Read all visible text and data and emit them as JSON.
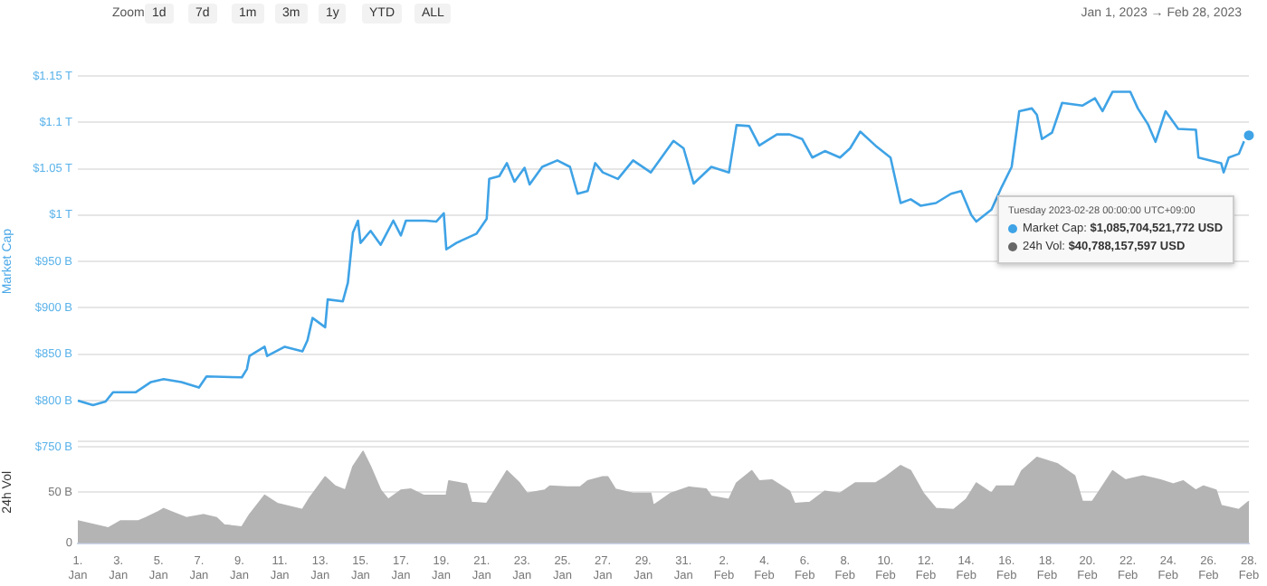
{
  "chart_data": [
    {
      "type": "other",
      "annotations": [
        "Zoom",
        "1d",
        "7d",
        "1m",
        "3m",
        "1y",
        "YTD",
        "ALL",
        "Jan 1, 2023 → Feb 28, 2023"
      ]
    },
    {
      "type": "line",
      "ylabel": "Market Cap",
      "marker": "none",
      "grid": "y",
      "tick_labels": "y",
      "xlim": [
        "2023-01-01",
        "2023-02-28"
      ],
      "ylim": [
        750000000000.0,
        1150000000000.0
      ],
      "yticks": [
        {
          "value": 750000000000.0,
          "label": "$750 B"
        },
        {
          "value": 800000000000.0,
          "label": "$800 B"
        },
        {
          "value": 850000000000.0,
          "label": "$850 B"
        },
        {
          "value": 900000000000.0,
          "label": "$900 B"
        },
        {
          "value": 950000000000.0,
          "label": "$950 B"
        },
        {
          "value": 1000000000000.0,
          "label": "$1 T"
        },
        {
          "value": 1050000000000.0,
          "label": "$1.05 T"
        },
        {
          "value": 1100000000000.0,
          "label": "$1.1 T"
        },
        {
          "value": 1150000000000.0,
          "label": "$1.15 T"
        }
      ],
      "x": [
        "2023-01-01T00:00",
        "2023-01-01T18:00",
        "2023-01-02T09:00",
        "2023-01-02T18:00",
        "2023-01-03T21:00",
        "2023-01-04T15:00",
        "2023-01-05T06:00",
        "2023-01-06T03:00",
        "2023-01-07T00:00",
        "2023-01-07T09:00",
        "2023-01-09T03:00",
        "2023-01-09T09:00",
        "2023-01-09T12:00",
        "2023-01-10T06:00",
        "2023-01-10T09:00",
        "2023-01-11T06:00",
        "2023-01-12T03:00",
        "2023-01-12T09:00",
        "2023-01-12T15:00",
        "2023-01-13T06:00",
        "2023-01-13T09:00",
        "2023-01-14T03:00",
        "2023-01-14T09:00",
        "2023-01-14T15:00",
        "2023-01-14T21:00",
        "2023-01-15T00:00",
        "2023-01-15T12:00",
        "2023-01-16T00:00",
        "2023-01-16T15:00",
        "2023-01-17T00:00",
        "2023-01-17T06:00",
        "2023-01-18T06:00",
        "2023-01-18T18:00",
        "2023-01-19T03:00",
        "2023-01-19T06:00",
        "2023-01-19T18:00",
        "2023-01-20T18:00",
        "2023-01-21T06:00",
        "2023-01-21T09:00",
        "2023-01-21T21:00",
        "2023-01-22T06:00",
        "2023-01-22T15:00",
        "2023-01-23T03:00",
        "2023-01-23T09:00",
        "2023-01-24T00:00",
        "2023-01-24T18:00",
        "2023-01-25T09:00",
        "2023-01-25T18:00",
        "2023-01-26T06:00",
        "2023-01-26T15:00",
        "2023-01-27T00:00",
        "2023-01-27T18:00",
        "2023-01-28T12:00",
        "2023-01-29T09:00",
        "2023-01-30T12:00",
        "2023-01-31T00:00",
        "2023-01-31T12:00",
        "2023-02-01T09:00",
        "2023-02-02T06:00",
        "2023-02-02T15:00",
        "2023-02-03T06:00",
        "2023-02-03T18:00",
        "2023-02-04T15:00",
        "2023-02-05T06:00",
        "2023-02-05T21:00",
        "2023-02-06T09:00",
        "2023-02-07T00:00",
        "2023-02-07T18:00",
        "2023-02-08T06:00",
        "2023-02-08T18:00",
        "2023-02-09T12:00",
        "2023-02-10T06:00",
        "2023-02-10T18:00",
        "2023-02-11T06:00",
        "2023-02-11T18:00",
        "2023-02-12T12:00",
        "2023-02-13T06:00",
        "2023-02-13T18:00",
        "2023-02-14T06:00",
        "2023-02-14T12:00",
        "2023-02-15T06:00",
        "2023-02-15T18:00",
        "2023-02-16T06:00",
        "2023-02-16T15:00",
        "2023-02-17T06:00",
        "2023-02-17T12:00",
        "2023-02-17T18:00",
        "2023-02-18T06:00",
        "2023-02-18T18:00",
        "2023-02-19T18:00",
        "2023-02-20T09:00",
        "2023-02-20T18:00",
        "2023-02-21T06:00",
        "2023-02-22T03:00",
        "2023-02-22T12:00",
        "2023-02-23T00:00",
        "2023-02-23T09:00",
        "2023-02-23T21:00",
        "2023-02-24T12:00",
        "2023-02-25T09:00",
        "2023-02-25T12:00",
        "2023-02-26T15:00",
        "2023-02-26T18:00",
        "2023-02-27T00:00",
        "2023-02-27T12:00",
        "2023-02-27T18:00",
        "2023-02-28T00:00"
      ],
      "series": [
        {
          "color": "#3fa3e6",
          "values": [
            800000000000.0,
            795000000000.0,
            799000000000.0,
            809000000000.0,
            809000000000.0,
            820000000000.0,
            823000000000.0,
            820000000000.0,
            814000000000.0,
            826000000000.0,
            825000000000.0,
            834000000000.0,
            848000000000.0,
            858000000000.0,
            848000000000.0,
            858000000000.0,
            853000000000.0,
            865000000000.0,
            889000000000.0,
            879000000000.0,
            909000000000.0,
            907000000000.0,
            927000000000.0,
            981000000000.0,
            994000000000.0,
            970000000000.0,
            983000000000.0,
            968000000000.0,
            994000000000.0,
            978000000000.0,
            994000000000.0,
            994000000000.0,
            993000000000.0,
            1002000000000.0,
            963000000000.0,
            970000000000.0,
            980000000000.0,
            996000000000.0,
            1039000000000.0,
            1042000000000.0,
            1056000000000.0,
            1036000000000.0,
            1051000000000.0,
            1033000000000.0,
            1052000000000.0,
            1059000000000.0,
            1052000000000.0,
            1023000000000.0,
            1026000000000.0,
            1056000000000.0,
            1046000000000.0,
            1039000000000.0,
            1059000000000.0,
            1046000000000.0,
            1080000000000.0,
            1072000000000.0,
            1034000000000.0,
            1052000000000.0,
            1046000000000.0,
            1097000000000.0,
            1096000000000.0,
            1075000000000.0,
            1087000000000.0,
            1087000000000.0,
            1082000000000.0,
            1062000000000.0,
            1069000000000.0,
            1062000000000.0,
            1072000000000.0,
            1090000000000.0,
            1075000000000.0,
            1062000000000.0,
            1013000000000.0,
            1017000000000.0,
            1010000000000.0,
            1013000000000.0,
            1023000000000.0,
            1026000000000.0,
            1000000000000.0,
            993000000000.0,
            1006000000000.0,
            1030000000000.0,
            1052000000000.0,
            1112000000000.0,
            1115000000000.0,
            1108000000000.0,
            1082000000000.0,
            1089000000000.0,
            1121000000000.0,
            1118000000000.0,
            1126000000000.0,
            1112000000000.0,
            1133000000000.0,
            1133000000000.0,
            1115000000000.0,
            1098000000000.0,
            1079000000000.0,
            1112000000000.0,
            1093000000000.0,
            1092000000000.0,
            1062000000000.0,
            1056000000000.0,
            1046000000000.0,
            1062000000000.0,
            1066000000000.0,
            1079000000000.0,
            1086000000000.0
          ]
        }
      ],
      "annotations": [
        "Tuesday 2023-02-28 00:00:00 UTC+09:00",
        "Market Cap: $1,085,704,521,772 USD",
        "24h Vol: $40,788,157,597 USD"
      ]
    },
    {
      "type": "area",
      "ylabel": "24h Vol",
      "grid": "y",
      "xlim": [
        "2023-01-01",
        "2023-02-28"
      ],
      "ylim": [
        0,
        100000000000.0
      ],
      "yticks": [
        0,
        {
          "value": 50000000000.0,
          "label": "50 B"
        },
        {
          "value": 100000000000.0,
          "label": null
        }
      ],
      "xticks": [
        {
          "value": "2023-01-01",
          "label": "1. Jan"
        },
        {
          "value": "2023-01-03",
          "label": "3. Jan"
        },
        {
          "value": "2023-01-05",
          "label": "5. Jan"
        },
        {
          "value": "2023-01-07",
          "label": "7. Jan"
        },
        {
          "value": "2023-01-09",
          "label": "9. Jan"
        },
        {
          "value": "2023-01-11",
          "label": "11. Jan"
        },
        {
          "value": "2023-01-13",
          "label": "13. Jan"
        },
        {
          "value": "2023-01-15",
          "label": "15. Jan"
        },
        {
          "value": "2023-01-17",
          "label": "17. Jan"
        },
        {
          "value": "2023-01-19",
          "label": "19. Jan"
        },
        {
          "value": "2023-01-21",
          "label": "21. Jan"
        },
        {
          "value": "2023-01-23",
          "label": "23. Jan"
        },
        {
          "value": "2023-01-25",
          "label": "25. Jan"
        },
        {
          "value": "2023-01-27",
          "label": "27. Jan"
        },
        {
          "value": "2023-01-29",
          "label": "29. Jan"
        },
        {
          "value": "2023-01-31",
          "label": "31. Jan"
        },
        {
          "value": "2023-02-02",
          "label": "2. Feb"
        },
        {
          "value": "2023-02-04",
          "label": "4. Feb"
        },
        {
          "value": "2023-02-06",
          "label": "6. Feb"
        },
        {
          "value": "2023-02-08",
          "label": "8. Feb"
        },
        {
          "value": "2023-02-10",
          "label": "10. Feb"
        },
        {
          "value": "2023-02-12",
          "label": "12. Feb"
        },
        {
          "value": "2023-02-14",
          "label": "14. Feb"
        },
        {
          "value": "2023-02-16",
          "label": "16. Feb"
        },
        {
          "value": "2023-02-18",
          "label": "18. Feb"
        },
        {
          "value": "2023-02-20",
          "label": "20. Feb"
        },
        {
          "value": "2023-02-22",
          "label": "22. Feb"
        },
        {
          "value": "2023-02-24",
          "label": "24. Feb"
        },
        {
          "value": "2023-02-26",
          "label": "26. Feb"
        },
        {
          "value": "2023-02-28",
          "label": "28. Feb"
        }
      ],
      "x": [
        "2023-01-01T00:00",
        "2023-01-01T21:00",
        "2023-01-02T12:00",
        "2023-01-03T03:00",
        "2023-01-04T00:00",
        "2023-01-04T09:00",
        "2023-01-05T00:00",
        "2023-01-05T06:00",
        "2023-01-05T18:00",
        "2023-01-06T09:00",
        "2023-01-07T06:00",
        "2023-01-07T21:00",
        "2023-01-08T06:00",
        "2023-01-09T03:00",
        "2023-01-09T12:00",
        "2023-01-10T06:00",
        "2023-01-10T21:00",
        "2023-01-12T03:00",
        "2023-01-12T12:00",
        "2023-01-13T06:00",
        "2023-01-13T18:00",
        "2023-01-14T06:00",
        "2023-01-14T15:00",
        "2023-01-15T03:00",
        "2023-01-15T12:00",
        "2023-01-16T00:00",
        "2023-01-16T09:00",
        "2023-01-17T00:00",
        "2023-01-17T12:00",
        "2023-01-18T03:00",
        "2023-01-19T06:00",
        "2023-01-19T09:00",
        "2023-01-20T06:00",
        "2023-01-20T12:00",
        "2023-01-21T06:00",
        "2023-01-21T18:00",
        "2023-01-22T06:00",
        "2023-01-22T21:00",
        "2023-01-23T06:00",
        "2023-01-24T03:00",
        "2023-01-24T09:00",
        "2023-01-25T06:00",
        "2023-01-25T21:00",
        "2023-01-26T06:00",
        "2023-01-27T00:00",
        "2023-01-27T06:00",
        "2023-01-27T15:00",
        "2023-01-28T12:00",
        "2023-01-29T09:00",
        "2023-01-29T12:00",
        "2023-01-30T09:00",
        "2023-01-31T06:00",
        "2023-02-01T03:00",
        "2023-02-01T09:00",
        "2023-02-02T06:00",
        "2023-02-02T15:00",
        "2023-02-03T09:00",
        "2023-02-03T18:00",
        "2023-02-04T09:00",
        "2023-02-05T06:00",
        "2023-02-05T12:00",
        "2023-02-06T06:00",
        "2023-02-07T00:00",
        "2023-02-07T18:00",
        "2023-02-08T12:00",
        "2023-02-09T12:00",
        "2023-02-10T00:00",
        "2023-02-10T18:00",
        "2023-02-11T06:00",
        "2023-02-11T21:00",
        "2023-02-12T12:00",
        "2023-02-13T09:00",
        "2023-02-14T00:00",
        "2023-02-14T12:00",
        "2023-02-15T06:00",
        "2023-02-15T12:00",
        "2023-02-16T09:00",
        "2023-02-16T18:00",
        "2023-02-17T12:00",
        "2023-02-18T12:00",
        "2023-02-19T09:00",
        "2023-02-19T18:00",
        "2023-02-20T06:00",
        "2023-02-20T15:00",
        "2023-02-21T06:00",
        "2023-02-21T21:00",
        "2023-02-22T18:00",
        "2023-02-23T15:00",
        "2023-02-24T06:00",
        "2023-02-24T18:00",
        "2023-02-25T09:00",
        "2023-02-25T18:00",
        "2023-02-26T09:00",
        "2023-02-26T15:00",
        "2023-02-27T12:00",
        "2023-02-28T00:00"
      ],
      "series": [
        {
          "color": "#b4b4b4",
          "values": [
            22000000000.0,
            18000000000.0,
            15000000000.0,
            22000000000.0,
            22000000000.0,
            25000000000.0,
            31000000000.0,
            34000000000.0,
            30000000000.0,
            25000000000.0,
            28000000000.0,
            25000000000.0,
            18000000000.0,
            16000000000.0,
            28000000000.0,
            47000000000.0,
            39000000000.0,
            33000000000.0,
            45000000000.0,
            65000000000.0,
            56000000000.0,
            52000000000.0,
            75000000000.0,
            90000000000.0,
            75000000000.0,
            52000000000.0,
            43000000000.0,
            52000000000.0,
            53000000000.0,
            47000000000.0,
            47000000000.0,
            61000000000.0,
            58000000000.0,
            40000000000.0,
            39000000000.0,
            55000000000.0,
            71000000000.0,
            59000000000.0,
            49000000000.0,
            52000000000.0,
            56000000000.0,
            55000000000.0,
            55000000000.0,
            61000000000.0,
            65000000000.0,
            65000000000.0,
            53000000000.0,
            49000000000.0,
            49000000000.0,
            37000000000.0,
            49000000000.0,
            55000000000.0,
            53000000000.0,
            46000000000.0,
            43000000000.0,
            59000000000.0,
            71000000000.0,
            61000000000.0,
            62000000000.0,
            51000000000.0,
            39000000000.0,
            40000000000.0,
            51000000000.0,
            49000000000.0,
            59000000000.0,
            59000000000.0,
            65000000000.0,
            76000000000.0,
            71000000000.0,
            49000000000.0,
            34000000000.0,
            33000000000.0,
            43000000000.0,
            59000000000.0,
            49000000000.0,
            56000000000.0,
            56000000000.0,
            71000000000.0,
            84000000000.0,
            78000000000.0,
            66000000000.0,
            41000000000.0,
            41000000000.0,
            52000000000.0,
            71000000000.0,
            62000000000.0,
            66000000000.0,
            62000000000.0,
            58000000000.0,
            61000000000.0,
            52000000000.0,
            56000000000.0,
            52000000000.0,
            37000000000.0,
            33000000000.0,
            41000000000.0
          ]
        }
      ]
    }
  ]
}
